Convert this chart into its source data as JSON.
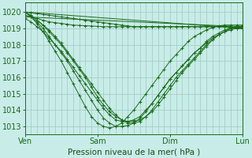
{
  "background_color": "#c8ece8",
  "grid_color": "#a0c8c0",
  "line_color": "#1a6b1a",
  "marker": "+",
  "xlabel": "Pression niveau de la mer( hPa )",
  "xtick_labels": [
    "Ven",
    "Sam",
    "Dim",
    "Lun"
  ],
  "ytick_min": 1013,
  "ytick_max": 1020,
  "ylim": [
    1012.5,
    1020.6
  ],
  "xlim": [
    0,
    72
  ],
  "xtick_positions": [
    0,
    24,
    48,
    72
  ],
  "series": [
    {
      "x": [
        0,
        2,
        4,
        6,
        8,
        10,
        12,
        14,
        16,
        18,
        20,
        22,
        24,
        26,
        28,
        30,
        32,
        34,
        36,
        38,
        40,
        42,
        44,
        46,
        48,
        50,
        52,
        54,
        56,
        58,
        60,
        62,
        64,
        66,
        68,
        70,
        72
      ],
      "y": [
        1020.0,
        1019.95,
        1019.9,
        1019.85,
        1019.8,
        1019.75,
        1019.7,
        1019.65,
        1019.6,
        1019.55,
        1019.5,
        1019.45,
        1019.4,
        1019.35,
        1019.3,
        1019.25,
        1019.2,
        1019.15,
        1019.1,
        1019.1,
        1019.1,
        1019.1,
        1019.1,
        1019.1,
        1019.1,
        1019.1,
        1019.1,
        1019.1,
        1019.1,
        1019.1,
        1019.1,
        1019.1,
        1019.1,
        1019.1,
        1019.1,
        1019.0,
        1019.0
      ]
    },
    {
      "x": [
        0,
        2,
        4,
        6,
        8,
        10,
        12,
        14,
        16,
        18,
        20,
        22,
        24,
        26,
        28,
        30,
        32,
        34,
        36,
        38,
        40,
        42,
        44,
        46,
        48,
        50,
        52,
        54,
        56,
        58,
        60,
        62,
        64,
        66,
        68,
        70,
        72
      ],
      "y": [
        1019.8,
        1019.7,
        1019.6,
        1019.5,
        1019.4,
        1019.35,
        1019.3,
        1019.25,
        1019.2,
        1019.18,
        1019.16,
        1019.14,
        1019.12,
        1019.1,
        1019.1,
        1019.1,
        1019.1,
        1019.1,
        1019.1,
        1019.1,
        1019.1,
        1019.1,
        1019.1,
        1019.1,
        1019.1,
        1019.1,
        1019.1,
        1019.1,
        1019.1,
        1019.1,
        1019.1,
        1019.1,
        1019.1,
        1019.1,
        1019.1,
        1019.0,
        1019.0
      ]
    },
    {
      "x": [
        0,
        72
      ],
      "y": [
        1020.0,
        1019.0
      ]
    },
    {
      "x": [
        0,
        72
      ],
      "y": [
        1019.7,
        1019.1
      ]
    },
    {
      "x": [
        0,
        2,
        4,
        6,
        8,
        10,
        12,
        14,
        16,
        18,
        20,
        22,
        24,
        26,
        28,
        30,
        32,
        34,
        36,
        38,
        40,
        42,
        44,
        46,
        48,
        50,
        52,
        54,
        56,
        58,
        60,
        62,
        64,
        66,
        68,
        70,
        72
      ],
      "y": [
        1020.0,
        1019.8,
        1019.5,
        1019.2,
        1018.8,
        1018.4,
        1018.0,
        1017.5,
        1017.0,
        1016.5,
        1016.0,
        1015.4,
        1014.8,
        1014.3,
        1013.9,
        1013.6,
        1013.4,
        1013.3,
        1013.3,
        1013.4,
        1013.6,
        1013.9,
        1014.3,
        1014.8,
        1015.3,
        1015.8,
        1016.3,
        1016.7,
        1017.1,
        1017.5,
        1017.9,
        1018.3,
        1018.6,
        1018.8,
        1019.0,
        1019.05,
        1019.1
      ]
    },
    {
      "x": [
        0,
        2,
        4,
        6,
        8,
        10,
        12,
        14,
        16,
        18,
        20,
        22,
        24,
        26,
        28,
        30,
        32,
        34,
        36,
        38,
        40,
        42,
        44,
        46,
        48,
        50,
        52,
        54,
        56,
        58,
        60,
        62,
        64,
        66,
        68,
        70,
        72
      ],
      "y": [
        1020.0,
        1019.75,
        1019.4,
        1019.0,
        1018.5,
        1018.0,
        1017.5,
        1017.0,
        1016.4,
        1015.8,
        1015.2,
        1014.6,
        1014.0,
        1013.5,
        1013.2,
        1013.0,
        1013.0,
        1013.05,
        1013.2,
        1013.5,
        1013.9,
        1014.4,
        1014.9,
        1015.4,
        1015.9,
        1016.3,
        1016.7,
        1017.1,
        1017.5,
        1017.8,
        1018.2,
        1018.5,
        1018.7,
        1018.9,
        1019.05,
        1019.1,
        1019.15
      ]
    },
    {
      "x": [
        0,
        2,
        4,
        6,
        8,
        10,
        12,
        14,
        16,
        18,
        20,
        22,
        24,
        26,
        28,
        30,
        32,
        34,
        36,
        38,
        40,
        42,
        44,
        46,
        48,
        50,
        52,
        54,
        56,
        58,
        60,
        62,
        64,
        66,
        68,
        70,
        72
      ],
      "y": [
        1020.0,
        1019.7,
        1019.3,
        1018.8,
        1018.2,
        1017.6,
        1017.0,
        1016.3,
        1015.6,
        1014.9,
        1014.2,
        1013.6,
        1013.2,
        1013.0,
        1012.9,
        1013.0,
        1013.2,
        1013.6,
        1014.0,
        1014.5,
        1015.0,
        1015.5,
        1016.0,
        1016.5,
        1017.0,
        1017.4,
        1017.8,
        1018.2,
        1018.5,
        1018.7,
        1018.9,
        1019.05,
        1019.15,
        1019.2,
        1019.2,
        1019.2,
        1019.2
      ]
    },
    {
      "x": [
        0,
        2,
        4,
        6,
        8,
        10,
        12,
        14,
        16,
        18,
        20,
        22,
        24,
        26,
        28,
        30,
        32,
        34,
        36,
        38,
        40,
        42,
        44,
        46,
        48,
        50,
        52,
        54,
        56,
        58,
        60,
        62,
        64,
        66,
        68,
        70,
        72
      ],
      "y": [
        1019.6,
        1019.4,
        1019.1,
        1018.8,
        1018.4,
        1018.0,
        1017.6,
        1017.1,
        1016.6,
        1016.1,
        1015.6,
        1015.1,
        1014.6,
        1014.1,
        1013.7,
        1013.4,
        1013.3,
        1013.3,
        1013.4,
        1013.6,
        1014.0,
        1014.4,
        1014.9,
        1015.4,
        1015.9,
        1016.3,
        1016.7,
        1017.1,
        1017.5,
        1017.8,
        1018.1,
        1018.4,
        1018.6,
        1018.8,
        1018.9,
        1019.0,
        1019.1
      ]
    },
    {
      "x": [
        4,
        6,
        8,
        10,
        12,
        14,
        16,
        18,
        20,
        22,
        24,
        26,
        28,
        30,
        32,
        34,
        36,
        38,
        40,
        42,
        44,
        46,
        48,
        50,
        52,
        54,
        56,
        58,
        60,
        62,
        64,
        66,
        68,
        70,
        72
      ],
      "y": [
        1019.5,
        1019.2,
        1018.9,
        1018.5,
        1018.1,
        1017.6,
        1017.1,
        1016.6,
        1016.1,
        1015.6,
        1015.1,
        1014.6,
        1014.1,
        1013.7,
        1013.4,
        1013.2,
        1013.2,
        1013.3,
        1013.6,
        1014.0,
        1014.5,
        1015.0,
        1015.5,
        1016.0,
        1016.4,
        1016.8,
        1017.2,
        1017.6,
        1018.0,
        1018.3,
        1018.6,
        1018.8,
        1019.0,
        1019.1,
        1019.1
      ]
    }
  ]
}
